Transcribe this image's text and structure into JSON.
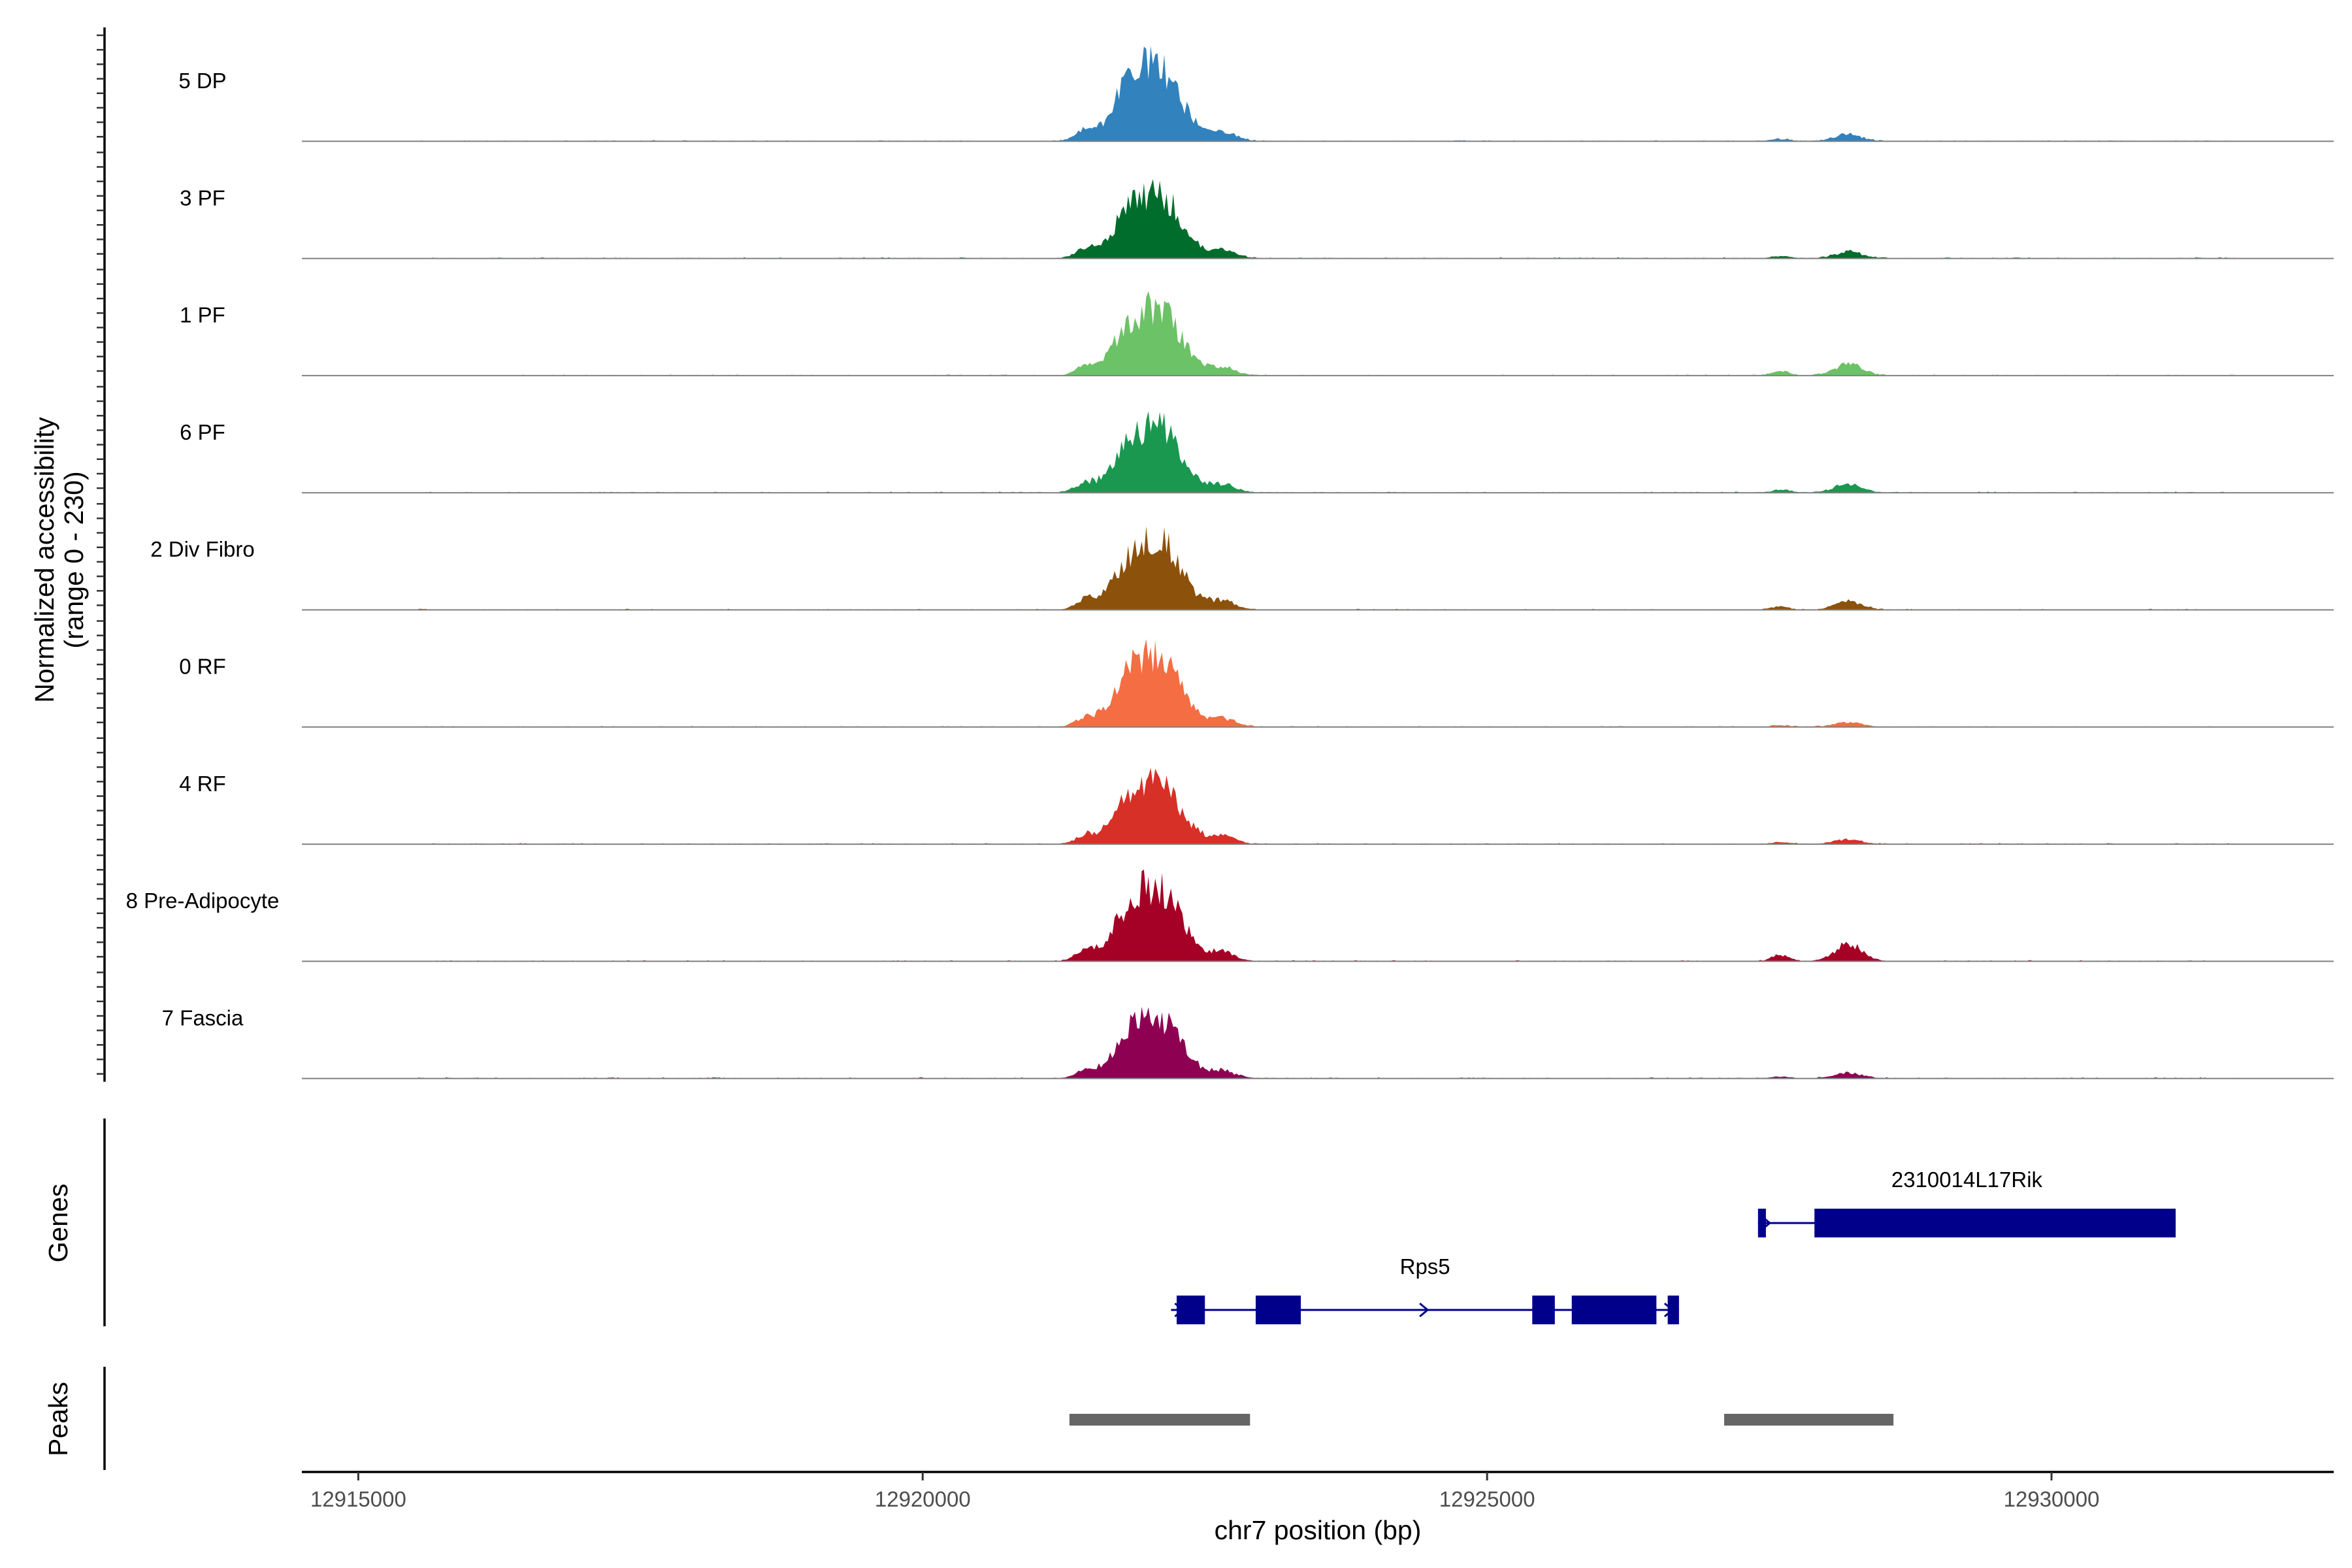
{
  "chart_data": {
    "type": "area",
    "title": "",
    "y_axis_title_line1": "Normalized accessibility",
    "y_axis_title_line2": "(range 0 - 230)",
    "ylim": [
      0,
      230
    ],
    "xlabel": "chr7 position (bp)",
    "xlim": [
      12914500,
      12932500
    ],
    "x_ticks": [
      12915000,
      12920000,
      12925000,
      12930000
    ],
    "x_tick_labels": [
      "12915000",
      "12920000",
      "12925000",
      "12930000"
    ],
    "tracks": [
      {
        "name": "5 DP",
        "color": "#3182bd",
        "peak_scale": 1.0,
        "second_region_scale": 0.07
      },
      {
        "name": "3 PF",
        "color": "#006d2c",
        "peak_scale": 0.84,
        "second_region_scale": 0.07
      },
      {
        "name": "1 PF",
        "color": "#6cc266",
        "peak_scale": 0.86,
        "second_region_scale": 0.13
      },
      {
        "name": "6 PF",
        "color": "#1a9850",
        "peak_scale": 0.86,
        "second_region_scale": 0.09
      },
      {
        "name": "2 Div Fibro",
        "color": "#8c510a",
        "peak_scale": 0.9,
        "second_region_scale": 0.09
      },
      {
        "name": "0 RF",
        "color": "#f46d43",
        "peak_scale": 0.9,
        "second_region_scale": 0.05
      },
      {
        "name": "4 RF",
        "color": "#d73027",
        "peak_scale": 0.8,
        "second_region_scale": 0.05
      },
      {
        "name": "8 Pre-Adipocyte",
        "color": "#a50026",
        "peak_scale": 0.96,
        "second_region_scale": 0.18
      },
      {
        "name": "7 Fascia",
        "color": "#8e0152",
        "peak_scale": 0.8,
        "second_region_scale": 0.06
      }
    ],
    "genes_panel_title": "Genes",
    "genes": [
      {
        "name": "2310014L17Rik",
        "start": 12927400,
        "end": 12931100,
        "strand": "+",
        "row": 0,
        "exons": [
          [
            12927400,
            12927470
          ],
          [
            12927900,
            12931100
          ]
        ]
      },
      {
        "name": "Rps5",
        "start": 12922200,
        "end": 12926700,
        "strand": "+",
        "row": 1,
        "exons": [
          [
            12922250,
            12922500
          ],
          [
            12922950,
            12923350
          ],
          [
            12925400,
            12925600
          ],
          [
            12925750,
            12926500
          ],
          [
            12926600,
            12926700
          ]
        ]
      }
    ],
    "peaks_panel_title": "Peaks",
    "peaks": [
      {
        "start": 12921300,
        "end": 12922900
      },
      {
        "start": 12927100,
        "end": 12928600
      }
    ],
    "peak_color": "#666666",
    "gene_color": "#00008b"
  }
}
